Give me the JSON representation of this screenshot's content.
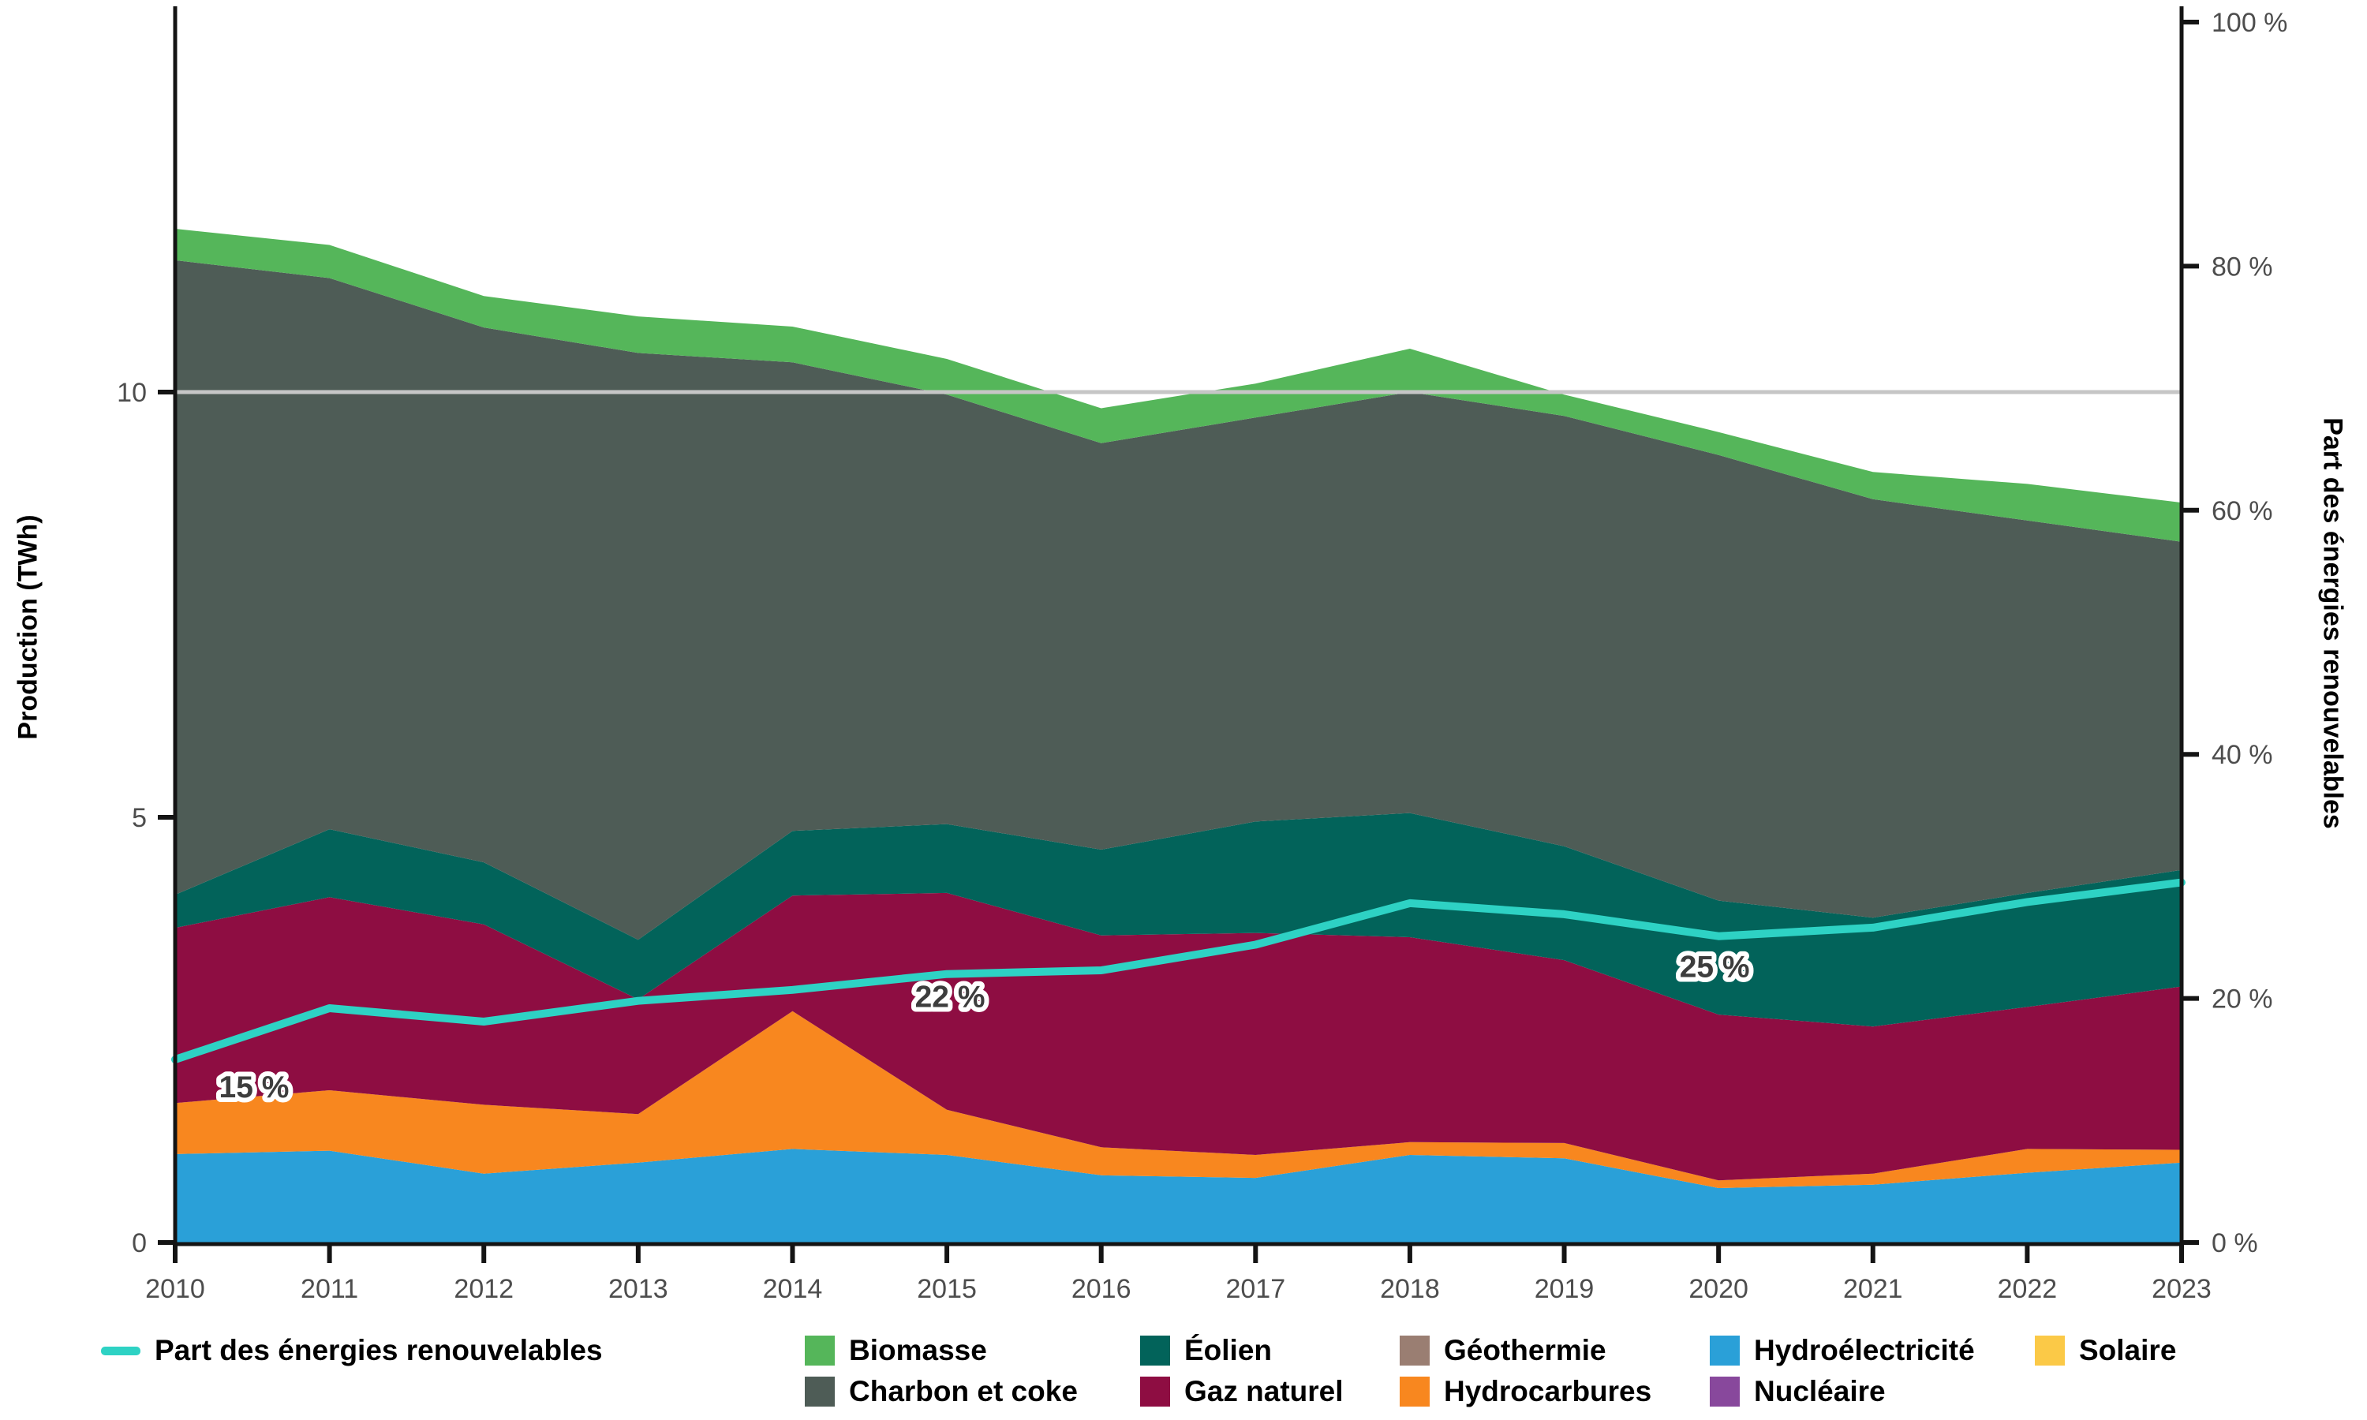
{
  "axes": {
    "y_title": "Production (TWh)",
    "y2_title": "Part des énergies renouvelables"
  },
  "legend": {
    "line_item": {
      "label": "Part des énergies renouvelables",
      "color": "#2ed2c4"
    },
    "row1": [
      {
        "label": "Biomasse",
        "color": "#55b65a"
      },
      {
        "label": "Éolien",
        "color": "#02635a"
      },
      {
        "label": "Géothermie",
        "color": "#9a7e72"
      },
      {
        "label": "Hydroélectricité",
        "color": "#2aa0d8"
      },
      {
        "label": "Solaire",
        "color": "#fbc947"
      }
    ],
    "row2": [
      {
        "label": "Charbon et coke",
        "color": "#4e5c56"
      },
      {
        "label": "Gaz naturel",
        "color": "#8e0d42"
      },
      {
        "label": "Hydrocarbures",
        "color": "#f8871f"
      },
      {
        "label": "Nucléaire",
        "color": "#88489c"
      }
    ]
  },
  "chart_data": {
    "type": "area",
    "title": "",
    "xlabel": "",
    "ylabel": "Production (TWh)",
    "y2label": "Part des énergies renouvelables",
    "x": [
      2010,
      2011,
      2012,
      2013,
      2014,
      2015,
      2016,
      2017,
      2018,
      2019,
      2020,
      2021,
      2022,
      2023
    ],
    "ylim": [
      0,
      14.4
    ],
    "y2lim": [
      0,
      100
    ],
    "grid": "single horizontal gridline at 10 TWh",
    "gridline_twh": 10,
    "y_ticks": [
      {
        "v": 0,
        "label": "0"
      },
      {
        "v": 5,
        "label": "5"
      },
      {
        "v": 10,
        "label": "10"
      }
    ],
    "y2_ticks": [
      {
        "v": 0,
        "label": "0 %"
      },
      {
        "v": 20,
        "label": "20 %"
      },
      {
        "v": 40,
        "label": "40 %"
      },
      {
        "v": 60,
        "label": "60 %"
      },
      {
        "v": 80,
        "label": "80 %"
      },
      {
        "v": 100,
        "label": "100 %"
      }
    ],
    "series": [
      {
        "name": "Hydroélectricité",
        "color": "#2aa0d8",
        "values": [
          1.04,
          1.08,
          0.81,
          0.94,
          1.1,
          1.03,
          0.79,
          0.76,
          1.03,
          0.99,
          0.64,
          0.68,
          0.82,
          0.94
        ]
      },
      {
        "name": "Solaire",
        "color": "#fbc947",
        "values": [
          0,
          0,
          0,
          0,
          0,
          0,
          0,
          0,
          0,
          0,
          0,
          0,
          0,
          0
        ]
      },
      {
        "name": "Hydrocarbures",
        "color": "#f8871f",
        "values": [
          0.6,
          0.71,
          0.81,
          0.57,
          1.62,
          0.53,
          0.33,
          0.27,
          0.15,
          0.18,
          0.09,
          0.13,
          0.28,
          0.15
        ]
      },
      {
        "name": "Nucléaire",
        "color": "#88489c",
        "values": [
          0,
          0,
          0,
          0,
          0,
          0,
          0,
          0,
          0,
          0,
          0,
          0,
          0,
          0
        ]
      },
      {
        "name": "Géothermie",
        "color": "#9a7e72",
        "values": [
          0,
          0,
          0,
          0,
          0,
          0,
          0,
          0,
          0,
          0,
          0,
          0,
          0,
          0
        ]
      },
      {
        "name": "Gaz naturel",
        "color": "#8e0d42",
        "values": [
          2.06,
          2.27,
          2.12,
          1.35,
          1.36,
          2.55,
          2.49,
          2.61,
          2.41,
          2.15,
          1.95,
          1.73,
          1.67,
          1.92
        ]
      },
      {
        "name": "Éolien",
        "color": "#02635a",
        "values": [
          0.39,
          0.8,
          0.73,
          0.7,
          0.76,
          0.81,
          1.01,
          1.31,
          1.46,
          1.34,
          1.34,
          1.28,
          1.34,
          1.37
        ]
      },
      {
        "name": "Charbon et coke",
        "color": "#4e5c56",
        "values": [
          7.46,
          6.48,
          6.29,
          6.9,
          5.51,
          5.05,
          4.78,
          4.75,
          4.95,
          5.06,
          5.24,
          4.92,
          4.38,
          3.86
        ]
      },
      {
        "name": "Biomasse",
        "color": "#55b65a",
        "values": [
          0.37,
          0.39,
          0.37,
          0.43,
          0.42,
          0.42,
          0.41,
          0.4,
          0.51,
          0.25,
          0.27,
          0.32,
          0.43,
          0.46
        ]
      }
    ],
    "line_series": {
      "name": "Part des énergies renouvelables",
      "color": "#2ed2c4",
      "unit": "%",
      "values": [
        15.0,
        19.2,
        18.1,
        19.8,
        20.7,
        22.0,
        22.3,
        24.4,
        27.8,
        26.9,
        25.1,
        25.8,
        27.9,
        29.5
      ]
    },
    "annotations": [
      {
        "year": 2010,
        "text": "15 %"
      },
      {
        "year": 2015,
        "text": "22 %"
      },
      {
        "year": 2020,
        "text": "25 %"
      }
    ],
    "legend_position": "bottom"
  }
}
